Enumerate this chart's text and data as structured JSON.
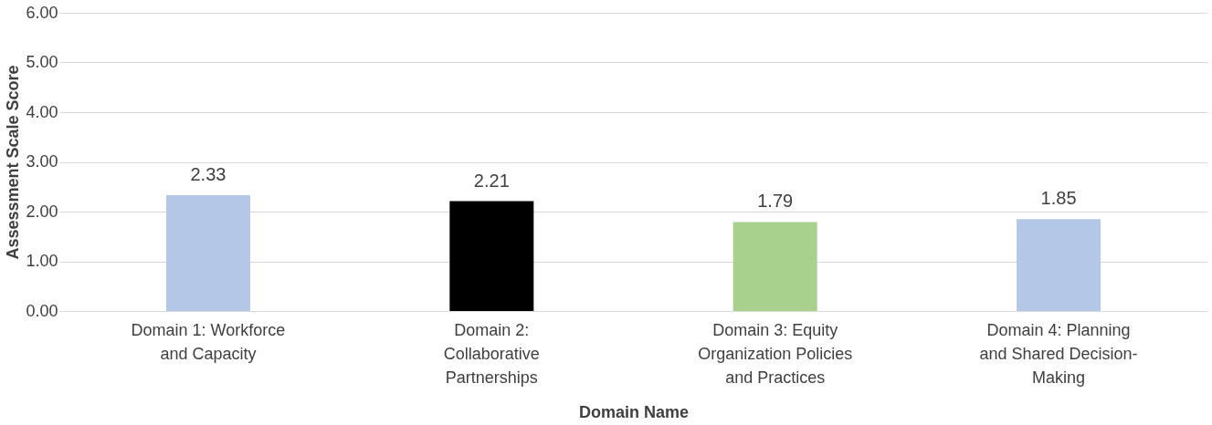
{
  "chart_data": {
    "type": "bar",
    "categories": [
      "Domain 1: Workforce and Capacity",
      "Domain 2: Collaborative Partnerships",
      "Domain 3: Equity Organization Policies and Practices",
      "Domain 4: Planning and Shared Decision-Making"
    ],
    "values": [
      2.33,
      2.21,
      1.79,
      1.85
    ],
    "colors": [
      "#b4c7e7",
      "#000000",
      "#a9d18e",
      "#b4c7e7"
    ],
    "xlabel": "Domain Name",
    "ylabel": "Assessment Scale Score",
    "ylim": [
      0,
      6
    ],
    "yticks": [
      {
        "value": 0,
        "label": "0.00"
      },
      {
        "value": 1,
        "label": "1.00"
      },
      {
        "value": 2,
        "label": "2.00"
      },
      {
        "value": 3,
        "label": "3.00"
      },
      {
        "value": 4,
        "label": "4.00"
      },
      {
        "value": 5,
        "label": "5.00"
      },
      {
        "value": 6,
        "label": "6.00"
      }
    ],
    "grid": "y",
    "data_labels": true,
    "legend": false
  }
}
